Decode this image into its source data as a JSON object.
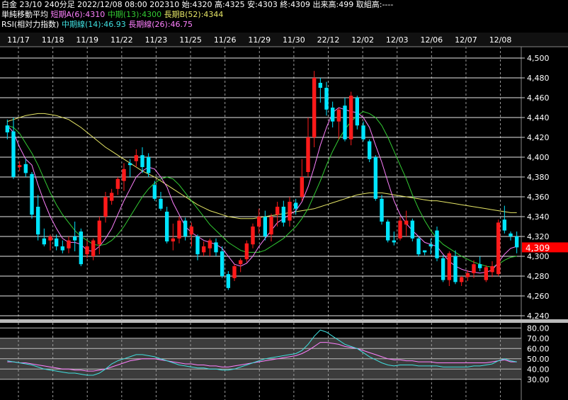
{
  "header": {
    "line1": "白金 23/10 240分足 2022/12/08 08:00 202310 始:4320 高:4325 安:4303 終:4309 出来高:499 取組高:----",
    "ma_title": "単純移動平均",
    "ma_a": "短期A(6):4310",
    "ma_mid": "中期(13):4300",
    "ma_b": "長期B(52):4344",
    "rsi_title": "RSI(相対力指数)",
    "rsi_mid": "中期線(14):46.93",
    "rsi_long": "長期線(26):46.75"
  },
  "colors": {
    "up": "#ff1a1a",
    "down": "#00e5ff",
    "ma_short": "#ff80ff",
    "ma_mid": "#33cc33",
    "ma_long": "#e6e666",
    "rsi_mid": "#40e0e0",
    "rsi_long": "#ff80ff",
    "price_tag": "#ff0000"
  },
  "chart_data": {
    "type": "candlestick",
    "x_labels": [
      "11/17",
      "11/18",
      "11/19",
      "11/22",
      "11/23",
      "11/25",
      "11/26",
      "11/29",
      "11/30",
      "22/12",
      "12/02",
      "12/03",
      "12/06",
      "12/07",
      "12/08"
    ],
    "y_ticks": [
      "4,500",
      "4,480",
      "4,460",
      "4,440",
      "4,420",
      "4,400",
      "4,380",
      "4,360",
      "4,340",
      "4,320",
      "4,300",
      "4,280",
      "4,260",
      "4,240"
    ],
    "ylim": [
      4240,
      4510
    ],
    "last_price": "4,309",
    "grid": true,
    "candles": [
      [
        4432,
        4438,
        4418,
        4425
      ],
      [
        4426,
        4440,
        4378,
        4380
      ],
      [
        4390,
        4396,
        4386,
        4392
      ],
      [
        4393,
        4398,
        4380,
        4384
      ],
      [
        4383,
        4385,
        4338,
        4342
      ],
      [
        4350,
        4362,
        4316,
        4322
      ],
      [
        4318,
        4328,
        4310,
        4312
      ],
      [
        4316,
        4322,
        4306,
        4320
      ],
      [
        4318,
        4322,
        4306,
        4310
      ],
      [
        4310,
        4316,
        4303,
        4306
      ],
      [
        4308,
        4320,
        4303,
        4316
      ],
      [
        4320,
        4335,
        4305,
        4316
      ],
      [
        4325,
        4328,
        4290,
        4292
      ],
      [
        4302,
        4316,
        4298,
        4310
      ],
      [
        4300,
        4318,
        4296,
        4316
      ],
      [
        4312,
        4340,
        4302,
        4336
      ],
      [
        4340,
        4365,
        4334,
        4360
      ],
      [
        4356,
        4368,
        4352,
        4364
      ],
      [
        4368,
        4380,
        4362,
        4378
      ],
      [
        4376,
        4394,
        4366,
        4388
      ],
      [
        4394,
        4398,
        4380,
        4392
      ],
      [
        4396,
        4408,
        4390,
        4402
      ],
      [
        4402,
        4410,
        4384,
        4390
      ],
      [
        4400,
        4404,
        4380,
        4384
      ],
      [
        4372,
        4376,
        4356,
        4358
      ],
      [
        4358,
        4365,
        4346,
        4348
      ],
      [
        4345,
        4350,
        4313,
        4315
      ],
      [
        4315,
        4333,
        4306,
        4318
      ],
      [
        4318,
        4340,
        4313,
        4336
      ],
      [
        4336,
        4339,
        4316,
        4320
      ],
      [
        4322,
        4334,
        4310,
        4330
      ],
      [
        4320,
        4322,
        4296,
        4302
      ],
      [
        4304,
        4315,
        4300,
        4310
      ],
      [
        4308,
        4318,
        4300,
        4316
      ],
      [
        4314,
        4318,
        4300,
        4304
      ],
      [
        4305,
        4310,
        4278,
        4280
      ],
      [
        4282,
        4285,
        4266,
        4268
      ],
      [
        4278,
        4292,
        4275,
        4290
      ],
      [
        4292,
        4298,
        4284,
        4296
      ],
      [
        4297,
        4316,
        4294,
        4313
      ],
      [
        4312,
        4333,
        4308,
        4330
      ],
      [
        4330,
        4348,
        4323,
        4340
      ],
      [
        4340,
        4346,
        4316,
        4320
      ],
      [
        4322,
        4343,
        4315,
        4340
      ],
      [
        4342,
        4355,
        4330,
        4350
      ],
      [
        4350,
        4356,
        4330,
        4334
      ],
      [
        4336,
        4360,
        4330,
        4355
      ],
      [
        4354,
        4358,
        4342,
        4348
      ],
      [
        4360,
        4398,
        4356,
        4380
      ],
      [
        4385,
        4440,
        4380,
        4420
      ],
      [
        4420,
        4487,
        4410,
        4480
      ],
      [
        4475,
        4480,
        4455,
        4470
      ],
      [
        4470,
        4476,
        4442,
        4448
      ],
      [
        4450,
        4456,
        4430,
        4436
      ],
      [
        4436,
        4450,
        4418,
        4448
      ],
      [
        4452,
        4460,
        4416,
        4418
      ],
      [
        4418,
        4466,
        4412,
        4462
      ],
      [
        4460,
        4462,
        4428,
        4432
      ],
      [
        4432,
        4436,
        4416,
        4418
      ],
      [
        4416,
        4418,
        4395,
        4398
      ],
      [
        4400,
        4402,
        4356,
        4358
      ],
      [
        4358,
        4362,
        4332,
        4335
      ],
      [
        4335,
        4337,
        4314,
        4316
      ],
      [
        4316,
        4325,
        4311,
        4314
      ],
      [
        4318,
        4340,
        4316,
        4336
      ],
      [
        4332,
        4346,
        4320,
        4336
      ],
      [
        4336,
        4338,
        4315,
        4318
      ],
      [
        4318,
        4320,
        4300,
        4302
      ],
      [
        4306,
        4306,
        4301,
        4304
      ],
      [
        4312,
        4318,
        4302,
        4310
      ],
      [
        4326,
        4330,
        4295,
        4298
      ],
      [
        4298,
        4301,
        4274,
        4276
      ],
      [
        4276,
        4305,
        4270,
        4303
      ],
      [
        4300,
        4306,
        4272,
        4274
      ],
      [
        4274,
        4280,
        4270,
        4279
      ],
      [
        4279,
        4286,
        4275,
        4283
      ],
      [
        4283,
        4296,
        4278,
        4292
      ],
      [
        4292,
        4300,
        4285,
        4288
      ],
      [
        4276,
        4291,
        4274,
        4289
      ],
      [
        4284,
        4295,
        4279,
        4290
      ],
      [
        4282,
        4337,
        4280,
        4334
      ],
      [
        4337,
        4351,
        4323,
        4326
      ],
      [
        4323,
        4325,
        4316,
        4320
      ],
      [
        4320,
        4325,
        4303,
        4309
      ]
    ],
    "ma_short": [
      4432,
      4425,
      4410,
      4398,
      4392,
      4372,
      4355,
      4340,
      4328,
      4318,
      4314,
      4314,
      4312,
      4306,
      4305,
      4310,
      4318,
      4328,
      4342,
      4356,
      4368,
      4380,
      4386,
      4390,
      4388,
      4380,
      4370,
      4354,
      4342,
      4330,
      4324,
      4320,
      4316,
      4314,
      4312,
      4308,
      4300,
      4292,
      4290,
      4293,
      4300,
      4310,
      4318,
      4326,
      4334,
      4338,
      4342,
      4346,
      4355,
      4370,
      4390,
      4412,
      4430,
      4445,
      4450,
      4448,
      4446,
      4445,
      4440,
      4430,
      4412,
      4395,
      4375,
      4356,
      4342,
      4333,
      4326,
      4320,
      4314,
      4312,
      4310,
      4302,
      4295,
      4290,
      4287,
      4285,
      4284,
      4283,
      4284,
      4286,
      4294,
      4302,
      4308,
      4310
    ],
    "ma_mid": [
      4432,
      4430,
      4424,
      4414,
      4404,
      4392,
      4378,
      4364,
      4352,
      4342,
      4334,
      4326,
      4320,
      4316,
      4312,
      4311,
      4312,
      4316,
      4322,
      4330,
      4340,
      4350,
      4360,
      4368,
      4374,
      4378,
      4380,
      4378,
      4372,
      4364,
      4356,
      4348,
      4340,
      4332,
      4326,
      4320,
      4314,
      4310,
      4306,
      4304,
      4304,
      4304,
      4306,
      4310,
      4314,
      4318,
      4324,
      4330,
      4338,
      4348,
      4362,
      4376,
      4392,
      4406,
      4418,
      4428,
      4436,
      4442,
      4446,
      4444,
      4440,
      4432,
      4420,
      4406,
      4392,
      4378,
      4362,
      4348,
      4336,
      4326,
      4318,
      4312,
      4308,
      4304,
      4300,
      4297,
      4294,
      4292,
      4290,
      4289,
      4292,
      4296,
      4299,
      4300
    ],
    "ma_long": [
      4436,
      4438,
      4440,
      4442,
      4443,
      4444,
      4444,
      4443,
      4442,
      4440,
      4438,
      4434,
      4430,
      4425,
      4420,
      4415,
      4410,
      4406,
      4402,
      4398,
      4394,
      4390,
      4386,
      4383,
      4380,
      4376,
      4372,
      4368,
      4364,
      4360,
      4356,
      4352,
      4349,
      4346,
      4344,
      4342,
      4340,
      4339,
      4338,
      4338,
      4338,
      4339,
      4340,
      4341,
      4342,
      4343,
      4344,
      4345,
      4346,
      4347,
      4348,
      4350,
      4352,
      4354,
      4356,
      4358,
      4360,
      4362,
      4363,
      4364,
      4364,
      4364,
      4363,
      4362,
      4361,
      4360,
      4359,
      4358,
      4357,
      4356,
      4356,
      4355,
      4354,
      4353,
      4352,
      4351,
      4350,
      4349,
      4348,
      4347,
      4346,
      4345,
      4344,
      4344
    ],
    "rsi": {
      "y_ticks": [
        "80.00",
        "70.00",
        "60.00",
        "50.00",
        "40.00",
        "30.00"
      ],
      "ylim": [
        25,
        85
      ],
      "mid": [
        48,
        47,
        46,
        45,
        44,
        42,
        40,
        39,
        38,
        37,
        36,
        36,
        35,
        34,
        34,
        36,
        40,
        45,
        48,
        50,
        52,
        54,
        54,
        53,
        52,
        50,
        48,
        46,
        44,
        43,
        42,
        41,
        41,
        40,
        40,
        39,
        39,
        40,
        42,
        44,
        46,
        48,
        50,
        51,
        52,
        53,
        54,
        55,
        58,
        64,
        72,
        78,
        76,
        72,
        68,
        64,
        62,
        60,
        56,
        52,
        49,
        46,
        44,
        43,
        44,
        44,
        44,
        43,
        43,
        43,
        43,
        42,
        42,
        42,
        42,
        42,
        43,
        43,
        44,
        45,
        48,
        50,
        48,
        47
      ],
      "long": [
        47,
        47,
        46,
        46,
        45,
        44,
        43,
        42,
        41,
        40,
        40,
        39,
        39,
        38,
        38,
        39,
        40,
        42,
        44,
        46,
        48,
        49,
        50,
        50,
        50,
        49,
        48,
        47,
        46,
        45,
        45,
        44,
        44,
        43,
        43,
        42,
        42,
        43,
        44,
        45,
        46,
        47,
        48,
        49,
        50,
        51,
        52,
        53,
        55,
        58,
        62,
        66,
        66,
        65,
        64,
        62,
        61,
        60,
        58,
        56,
        54,
        52,
        50,
        49,
        49,
        48,
        48,
        47,
        47,
        47,
        46,
        46,
        46,
        46,
        46,
        46,
        46,
        46,
        46,
        47,
        48,
        49,
        47,
        47
      ]
    }
  }
}
